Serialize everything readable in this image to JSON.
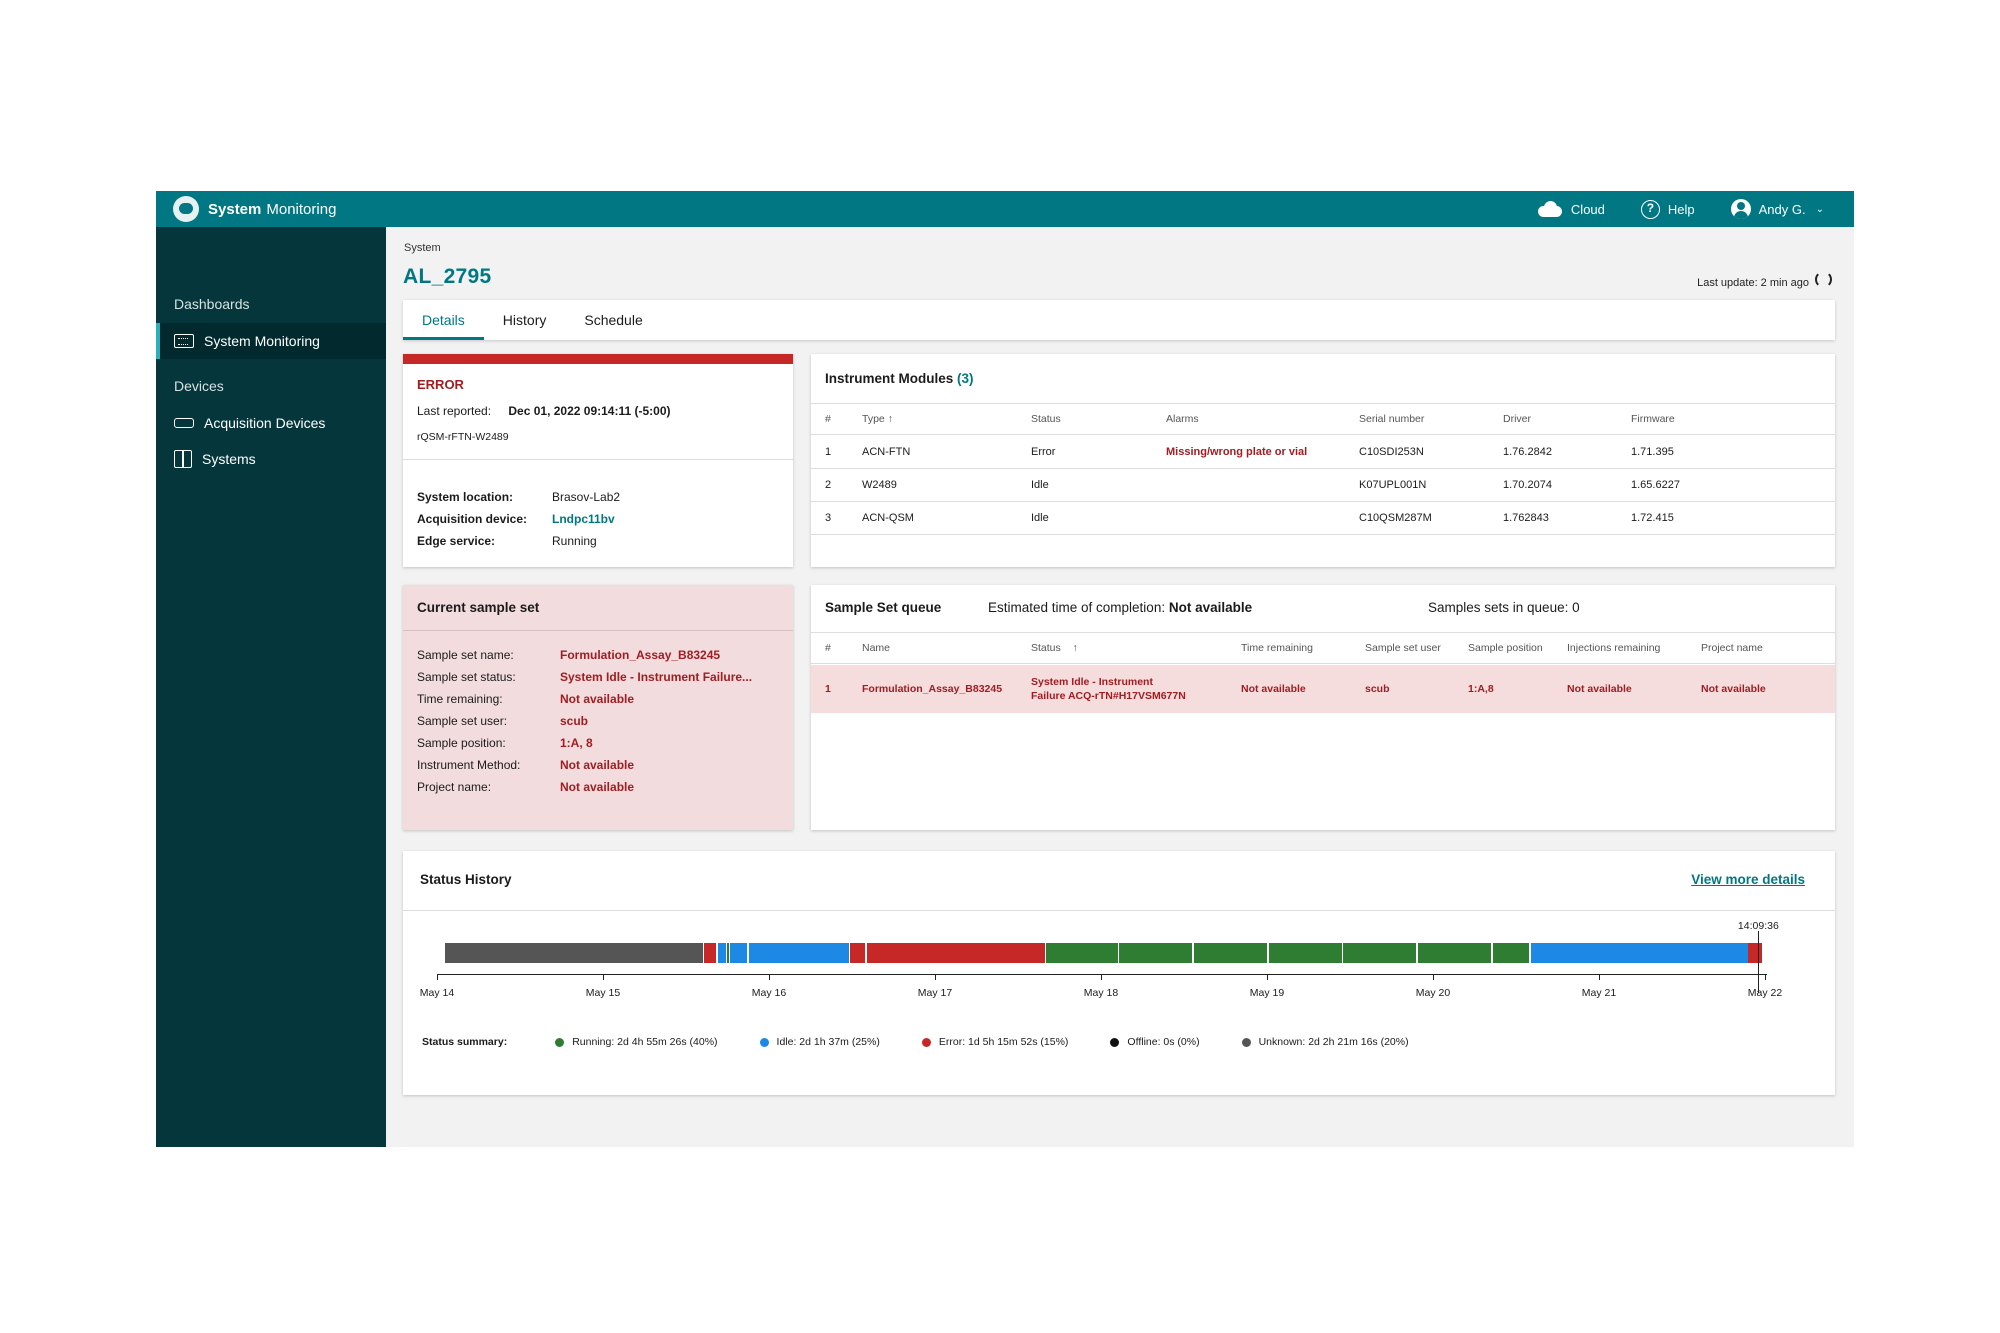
{
  "app": {
    "title_bold": "System",
    "title_rest": "Monitoring"
  },
  "topbar": {
    "cloud": "Cloud",
    "help": "Help",
    "user": "Andy G."
  },
  "sidebar": {
    "dashboards_head": "Dashboards",
    "dashboards_item": "System Monitoring",
    "devices_head": "Devices",
    "acq_item": "Acquisition Devices",
    "systems_item": "Systems"
  },
  "page": {
    "breadcrumb": "System",
    "title": "AL_2795",
    "last_update": "Last update: 2 min ago"
  },
  "tabs": [
    "Details",
    "History",
    "Schedule"
  ],
  "error_card": {
    "status": "ERROR",
    "last_reported_label": "Last reported:",
    "last_reported_value": "Dec 01, 2022 09:14:11 (-5:00)",
    "device_id": "rQSM-rFTN-W2489",
    "location_label": "System location:",
    "location_value": "Brasov-Lab2",
    "acq_label": "Acquisition device:",
    "acq_value": "Lndpc11bv",
    "edge_label": "Edge service:",
    "edge_value": "Running"
  },
  "modules": {
    "title": "Instrument Modules",
    "count": "(3)",
    "headers": [
      "#",
      "Type",
      "Status",
      "Alarms",
      "Serial number",
      "Driver",
      "Firmware"
    ],
    "rows": [
      [
        "1",
        "ACN-FTN",
        "Error",
        "Missing/wrong plate or vial",
        "C10SDI253N",
        "1.76.2842",
        "1.71.395"
      ],
      [
        "2",
        "W2489",
        "Idle",
        "",
        "K07UPL001N",
        "1.70.2074",
        "1.65.6227"
      ],
      [
        "3",
        "ACN-QSM",
        "Idle",
        "",
        "C10QSM287M",
        "1.762843",
        "1.72.415"
      ]
    ]
  },
  "current_set": {
    "title": "Current sample set",
    "items": [
      {
        "k": "Sample set name:",
        "v": "Formulation_Assay_B83245"
      },
      {
        "k": "Sample set status:",
        "v": "System Idle - Instrument Failure..."
      },
      {
        "k": "Time remaining:",
        "v": "Not available"
      },
      {
        "k": "Sample set user:",
        "v": "scub"
      },
      {
        "k": "Sample position:",
        "v": "1:A, 8"
      },
      {
        "k": "Instrument Method:",
        "v": "Not available"
      },
      {
        "k": "Project name:",
        "v": "Not available"
      }
    ]
  },
  "queue": {
    "title": "Sample Set queue",
    "est_label": "Estimated time of completion:",
    "est_value": "Not available",
    "count_text": "Samples sets in queue: 0",
    "headers": [
      "#",
      "Name",
      "Status",
      "Time remaining",
      "Sample set user",
      "Sample position",
      "Injections remaining",
      "Project name"
    ],
    "row": {
      "num": "1",
      "name": "Formulation_Assay_B83245",
      "status_line1": "System Idle - Instrument",
      "status_line2": "Failure ACQ-rTN#H17VSM677N",
      "time": "Not available",
      "user": "scub",
      "position": "1:A,8",
      "injections": "Not available",
      "project": "Not available"
    }
  },
  "history": {
    "title": "Status History",
    "link": "View more details",
    "now_label": "14:09:36",
    "days": [
      "May 14",
      "May 15",
      "May 16",
      "May 17",
      "May 18",
      "May 19",
      "May 20",
      "May 21",
      "May 22"
    ],
    "colors": {
      "running": "#2e7d32",
      "idle": "#1e88e5",
      "error": "#c62828",
      "offline": "#111111",
      "unknown": "#555555"
    },
    "segments": [
      {
        "s": 0.05,
        "e": 1.6,
        "status": "unknown"
      },
      {
        "s": 1.61,
        "e": 1.68,
        "status": "error"
      },
      {
        "s": 1.69,
        "e": 1.74,
        "status": "idle"
      },
      {
        "s": 1.745,
        "e": 1.76,
        "status": "running"
      },
      {
        "s": 1.765,
        "e": 1.87,
        "status": "idle"
      },
      {
        "s": 1.88,
        "e": 2.48,
        "status": "idle"
      },
      {
        "s": 2.49,
        "e": 2.58,
        "status": "error"
      },
      {
        "s": 2.59,
        "e": 3.66,
        "status": "error"
      },
      {
        "s": 3.67,
        "e": 4.1,
        "status": "running"
      },
      {
        "s": 4.11,
        "e": 4.55,
        "status": "running"
      },
      {
        "s": 4.56,
        "e": 5.0,
        "status": "running"
      },
      {
        "s": 5.01,
        "e": 5.45,
        "status": "running"
      },
      {
        "s": 5.46,
        "e": 5.9,
        "status": "running"
      },
      {
        "s": 5.91,
        "e": 6.35,
        "status": "running"
      },
      {
        "s": 6.36,
        "e": 6.58,
        "status": "running"
      },
      {
        "s": 6.59,
        "e": 7.9,
        "status": "idle"
      },
      {
        "s": 7.9,
        "e": 7.98,
        "status": "error"
      }
    ],
    "now_pos": 7.96,
    "summary_label": "Status summary:",
    "summary": [
      {
        "status": "running",
        "text": "Running: 2d 4h 55m 26s  (40%)"
      },
      {
        "status": "idle",
        "text": "Idle: 2d 1h 37m  (25%)"
      },
      {
        "status": "error",
        "text": "Error: 1d 5h 15m 52s  (15%)"
      },
      {
        "status": "offline",
        "text": "Offline: 0s  (0%)"
      },
      {
        "status": "unknown",
        "text": "Unknown: 2d 2h 21m 16s  (20%)"
      }
    ]
  }
}
